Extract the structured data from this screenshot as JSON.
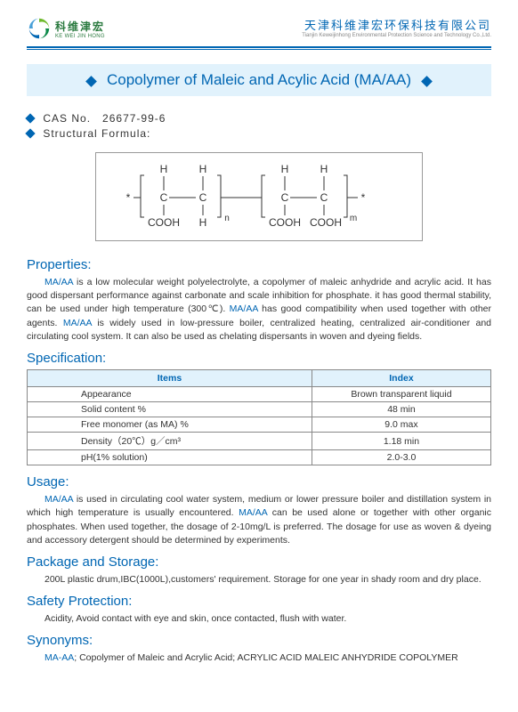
{
  "header": {
    "logo_cn": "科维津宏",
    "logo_en": "KE WEI JIN HONG",
    "company_cn": "天津科维津宏环保科技有限公司",
    "company_en": "Tianjin Keweijinhong Environmental Protection Science and Technology Co.,Ltd."
  },
  "title": "Copolymer of Maleic and Acylic Acid (MA/AA)",
  "info": {
    "cas_label": "CAS No.",
    "cas_value": "26677-99-6",
    "formula_label": "Structural Formula:"
  },
  "formula": {
    "atoms_H": "H",
    "atoms_C": "C",
    "group_COOH": "COOH",
    "star": "*",
    "sub_n": "n",
    "sub_m": "m"
  },
  "sections": {
    "properties": {
      "title": "Properties:",
      "text_parts": [
        {
          "hl": true,
          "t": "MA/AA"
        },
        {
          "hl": false,
          "t": " is a low molecular weight polyelectrolyte, a copolymer of maleic anhydride and acrylic acid. It has good dispersant performance against carbonate and scale inhibition for phosphate. it has good thermal stability, can be used under high temperature (300℃). "
        },
        {
          "hl": true,
          "t": "MA/AA"
        },
        {
          "hl": false,
          "t": " has good compatibility when used together with other agents. "
        },
        {
          "hl": true,
          "t": "MA/AA"
        },
        {
          "hl": false,
          "t": " is widely used in low-pressure boiler, centralized heating, centralized air-conditioner and circulating cool system. It can also be used as chelating dispersants in woven and dyeing fields."
        }
      ]
    },
    "specification": {
      "title": "Specification:",
      "columns": [
        "Items",
        "Index"
      ],
      "rows": [
        [
          "Appearance",
          "Brown transparent liquid"
        ],
        [
          "Solid content %",
          "48 min"
        ],
        [
          "Free monomer (as MA) %",
          "9.0 max"
        ],
        [
          "Density（20℃）g／cm³",
          "1.18 min"
        ],
        [
          "pH(1%  solution)",
          "2.0-3.0"
        ]
      ]
    },
    "usage": {
      "title": "Usage:",
      "text_parts": [
        {
          "hl": true,
          "t": "MA/AA"
        },
        {
          "hl": false,
          "t": " is used in circulating cool water system, medium or lower pressure boiler and distillation system in which high temperature is usually encountered. "
        },
        {
          "hl": true,
          "t": "MA/AA"
        },
        {
          "hl": false,
          "t": " can be used alone or together with other organic phosphates. When used together, the dosage of 2-10mg/L is preferred. The dosage for use as woven & dyeing and accessory detergent should be determined by experiments."
        }
      ]
    },
    "package": {
      "title": "Package and Storage:",
      "text": "200L plastic drum,IBC(1000L),customers' requirement. Storage for one year in shady room and dry place."
    },
    "safety": {
      "title": "Safety Protection:",
      "text": "Acidity, Avoid contact with eye and skin, once contacted, flush with water."
    },
    "synonyms": {
      "title": "Synonyms:",
      "text_parts": [
        {
          "hl": true,
          "t": "MA-AA"
        },
        {
          "hl": false,
          "t": "; Copolymer of Maleic and Acrylic Acid; ACRYLIC ACID MALEIC ANHYDRIDE COPOLYMER"
        }
      ]
    }
  },
  "colors": {
    "brand_blue": "#0066b3",
    "light_blue_bg": "#e1f2fc",
    "logo_green": "#2a7a3f"
  }
}
